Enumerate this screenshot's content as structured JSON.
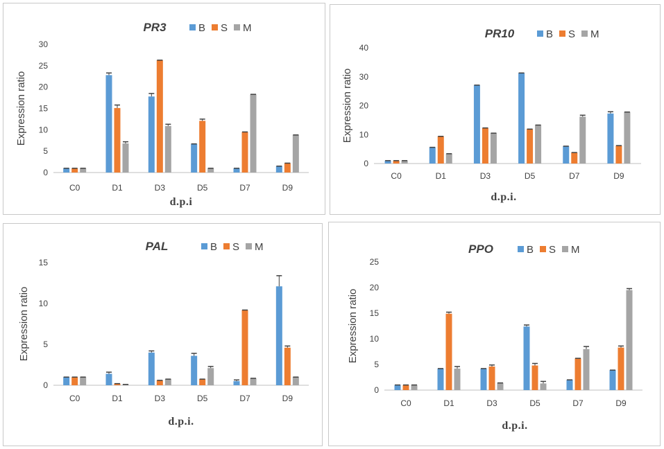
{
  "colors": {
    "B": "#5b9bd5",
    "S": "#ed7d31",
    "M": "#a5a5a5",
    "axis": "#bfbfbf",
    "text": "#404040"
  },
  "chart_data": [
    {
      "type": "bar",
      "title": "PR3",
      "categories": [
        "C0",
        "D1",
        "D3",
        "D5",
        "D7",
        "D9"
      ],
      "series": [
        {
          "name": "B",
          "values": [
            1,
            22.8,
            17.8,
            6.7,
            1,
            1.5
          ],
          "errors": [
            0,
            0.5,
            0.7,
            0,
            0,
            0
          ]
        },
        {
          "name": "S",
          "values": [
            1,
            15.1,
            26.3,
            12.1,
            9.5,
            2.2
          ],
          "errors": [
            0,
            0.7,
            0,
            0.4,
            0,
            0
          ]
        },
        {
          "name": "M",
          "values": [
            1,
            6.8,
            10.9,
            1,
            18.3,
            8.8
          ],
          "errors": [
            0,
            0.4,
            0.4,
            0,
            0,
            0
          ]
        }
      ],
      "xlabel": "d.p.i",
      "ylabel": "Expression ratio",
      "ylim": [
        0,
        30
      ],
      "yticks": [
        0,
        5,
        10,
        15,
        20,
        25,
        30
      ],
      "legend": "top-right"
    },
    {
      "type": "bar",
      "title": "PR10",
      "categories": [
        "C0",
        "D1",
        "D3",
        "D5",
        "D7",
        "D9"
      ],
      "series": [
        {
          "name": "B",
          "values": [
            1,
            5.6,
            27.1,
            31.3,
            6,
            17.3
          ],
          "errors": [
            0,
            0,
            0,
            0,
            0,
            0.6
          ]
        },
        {
          "name": "S",
          "values": [
            1,
            9.4,
            12.3,
            11.9,
            3.8,
            6.2
          ],
          "errors": [
            0,
            0,
            0,
            0,
            0,
            0
          ]
        },
        {
          "name": "M",
          "values": [
            1,
            3.4,
            10.5,
            13.3,
            16.2,
            17.8
          ],
          "errors": [
            0,
            0,
            0,
            0,
            0.5,
            0
          ]
        }
      ],
      "xlabel": "d.p.i.",
      "ylabel": "Expression ratio",
      "ylim": [
        0,
        40
      ],
      "yticks": [
        0,
        10,
        20,
        30,
        40
      ],
      "legend": "top-right"
    },
    {
      "type": "bar",
      "title": "PAL",
      "categories": [
        "C0",
        "D1",
        "D3",
        "D5",
        "D7",
        "D9"
      ],
      "series": [
        {
          "name": "B",
          "values": [
            1,
            1.4,
            4,
            3.6,
            0.5,
            12.1
          ],
          "errors": [
            0,
            0.2,
            0.2,
            0.3,
            0.15,
            1.3
          ]
        },
        {
          "name": "S",
          "values": [
            1,
            0.2,
            0.6,
            0.75,
            9.2,
            4.6
          ],
          "errors": [
            0,
            0,
            0,
            0,
            0,
            0.2
          ]
        },
        {
          "name": "M",
          "values": [
            1,
            0.1,
            0.75,
            2.1,
            0.85,
            1
          ],
          "errors": [
            0,
            0,
            0,
            0.2,
            0,
            0
          ]
        }
      ],
      "xlabel": "d.p.i.",
      "ylabel": "Expression ratio",
      "ylim": [
        0,
        15
      ],
      "yticks": [
        0,
        5,
        10,
        15
      ],
      "legend": "top-right"
    },
    {
      "type": "bar",
      "title": "PPO",
      "categories": [
        "C0",
        "D1",
        "D3",
        "D5",
        "D7",
        "D9"
      ],
      "series": [
        {
          "name": "B",
          "values": [
            1,
            4.2,
            4.2,
            12.4,
            2,
            3.9
          ],
          "errors": [
            0,
            0,
            0,
            0.3,
            0,
            0
          ]
        },
        {
          "name": "S",
          "values": [
            1,
            14.9,
            4.6,
            4.8,
            6.2,
            8.3
          ],
          "errors": [
            0,
            0.3,
            0.3,
            0.4,
            0,
            0.3
          ]
        },
        {
          "name": "M",
          "values": [
            1,
            4.2,
            1.4,
            1.3,
            8,
            19.5
          ],
          "errors": [
            0,
            0.4,
            0,
            0.4,
            0.5,
            0.3
          ]
        }
      ],
      "xlabel": "d.p.i.",
      "ylabel": "Expression ratio",
      "ylim": [
        0,
        25
      ],
      "yticks": [
        0,
        5,
        10,
        15,
        20,
        25
      ],
      "legend": "top-right"
    }
  ]
}
